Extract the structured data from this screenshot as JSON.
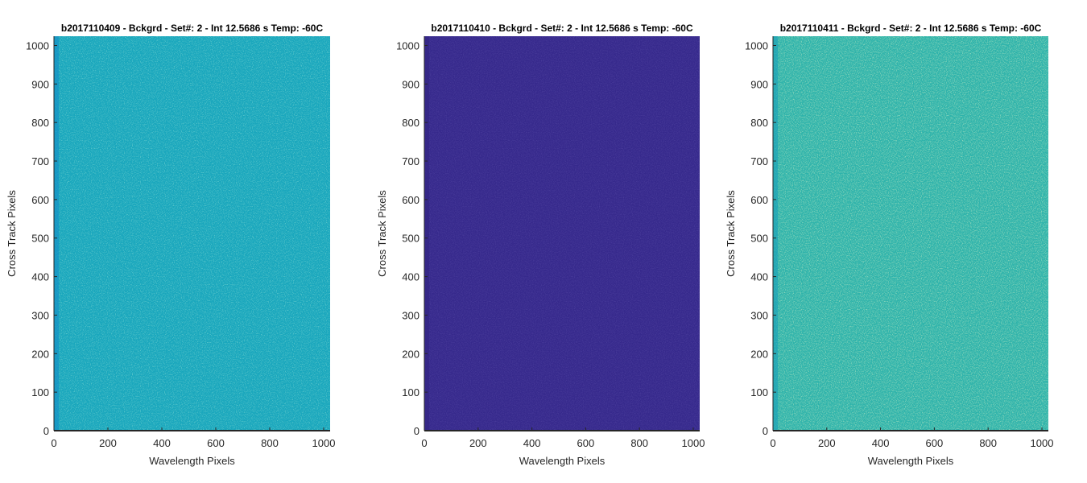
{
  "chart_data": [
    {
      "type": "heatmap",
      "title": "b2017110409 - Bckgrd - Set#: 2 - Int 12.5686 s Temp: -60C",
      "xlabel": "Wavelength Pixels",
      "ylabel": "Cross Track Pixels",
      "xlim": [
        0,
        1024
      ],
      "ylim": [
        0,
        1024
      ],
      "xticks": [
        "0",
        "200",
        "400",
        "600",
        "800",
        "1000"
      ],
      "yticks": [
        "0",
        "100",
        "200",
        "300",
        "400",
        "500",
        "600",
        "700",
        "800",
        "900",
        "1000"
      ],
      "colors": {
        "base": "#1aa7bd",
        "light": "#3db8a8",
        "dark": "#1592c6"
      },
      "grid": false
    },
    {
      "type": "heatmap",
      "title": "b2017110410 - Bckgrd - Set#: 2 - Int 12.5686 s Temp: -60C",
      "xlabel": "Wavelength Pixels",
      "ylabel": "Cross Track Pixels",
      "xlim": [
        0,
        1024
      ],
      "ylim": [
        0,
        1024
      ],
      "xticks": [
        "0",
        "200",
        "400",
        "600",
        "800",
        "1000"
      ],
      "yticks": [
        "0",
        "100",
        "200",
        "300",
        "400",
        "500",
        "600",
        "700",
        "800",
        "900",
        "1000"
      ],
      "colors": {
        "base": "#36298c",
        "light": "#3a2e94",
        "dark": "#332585"
      },
      "grid": false
    },
    {
      "type": "heatmap",
      "title": "b2017110411 - Bckgrd - Set#: 2 - Int 12.5686 s Temp: -60C",
      "xlabel": "Wavelength Pixels",
      "ylabel": "Cross Track Pixels",
      "xlim": [
        0,
        1024
      ],
      "ylim": [
        0,
        1024
      ],
      "xticks": [
        "0",
        "200",
        "400",
        "600",
        "800",
        "1000"
      ],
      "yticks": [
        "0",
        "100",
        "200",
        "300",
        "400",
        "500",
        "600",
        "700",
        "800",
        "900",
        "1000"
      ],
      "colors": {
        "base": "#2eb3ab",
        "light": "#5cc08a",
        "dark": "#1ea2b8"
      },
      "grid": false
    }
  ]
}
